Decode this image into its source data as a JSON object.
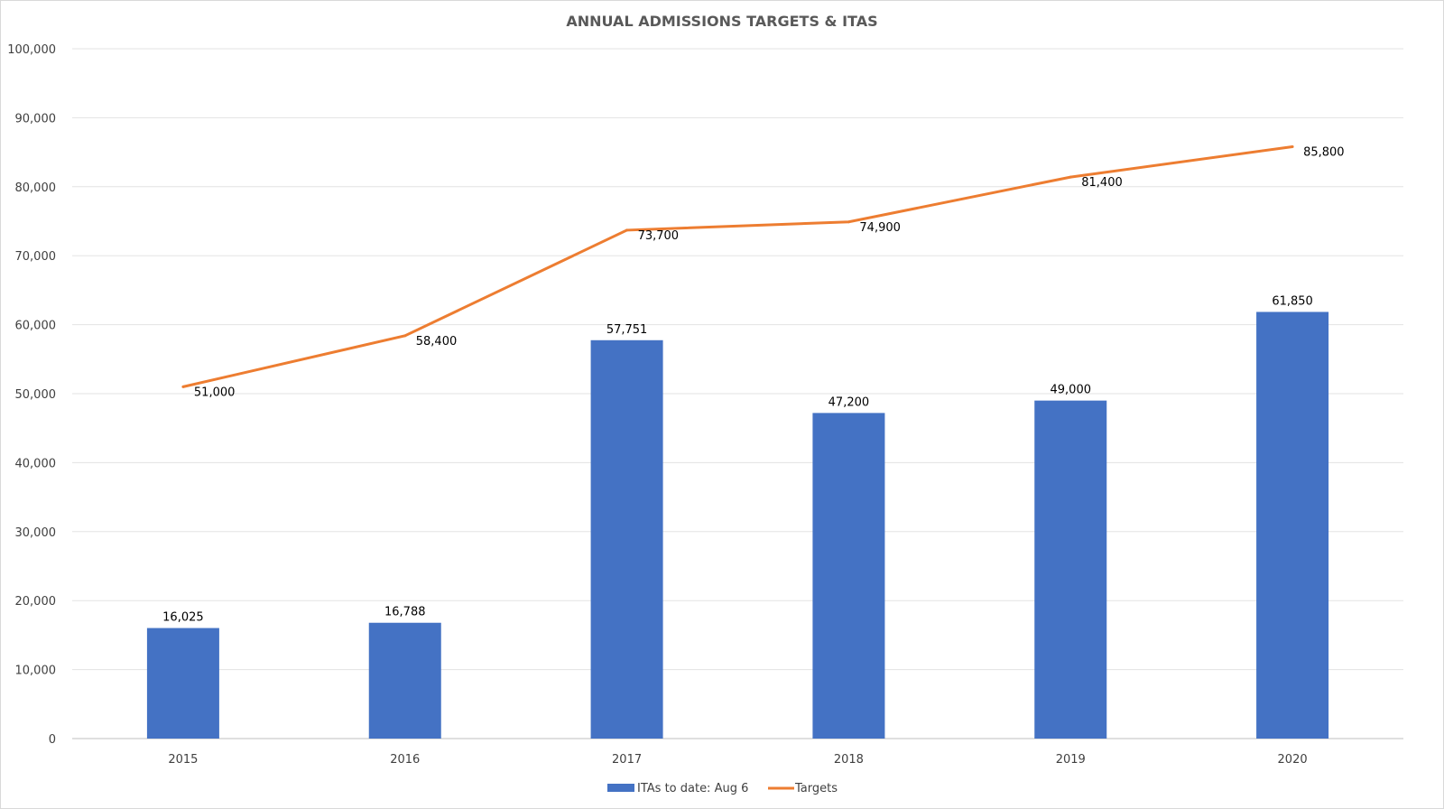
{
  "chart_data": {
    "type": "bar+line",
    "title": "ANNUAL ADMISSIONS TARGETS & ITAS",
    "categories": [
      "2015",
      "2016",
      "2017",
      "2018",
      "2019",
      "2020"
    ],
    "series": [
      {
        "name": "ITAs to date: Aug 6",
        "type": "bar",
        "color": "#4472c4",
        "values": [
          16025,
          16788,
          57751,
          47200,
          49000,
          61850
        ],
        "labels": [
          "16,025",
          "16,788",
          "57,751",
          "47,200",
          "49,000",
          "61,850"
        ]
      },
      {
        "name": "Targets",
        "type": "line",
        "color": "#ed7d31",
        "values": [
          51000,
          58400,
          73700,
          74900,
          81400,
          85800
        ],
        "labels": [
          "51,000",
          "58,400",
          "73,700",
          "74,900",
          "81,400",
          "85,800"
        ]
      }
    ],
    "ylim": [
      0,
      100000
    ],
    "yticks": [
      "0",
      "10,000",
      "20,000",
      "30,000",
      "40,000",
      "50,000",
      "60,000",
      "70,000",
      "80,000",
      "90,000",
      "100,000"
    ],
    "grid": true,
    "legend": "bottom"
  }
}
